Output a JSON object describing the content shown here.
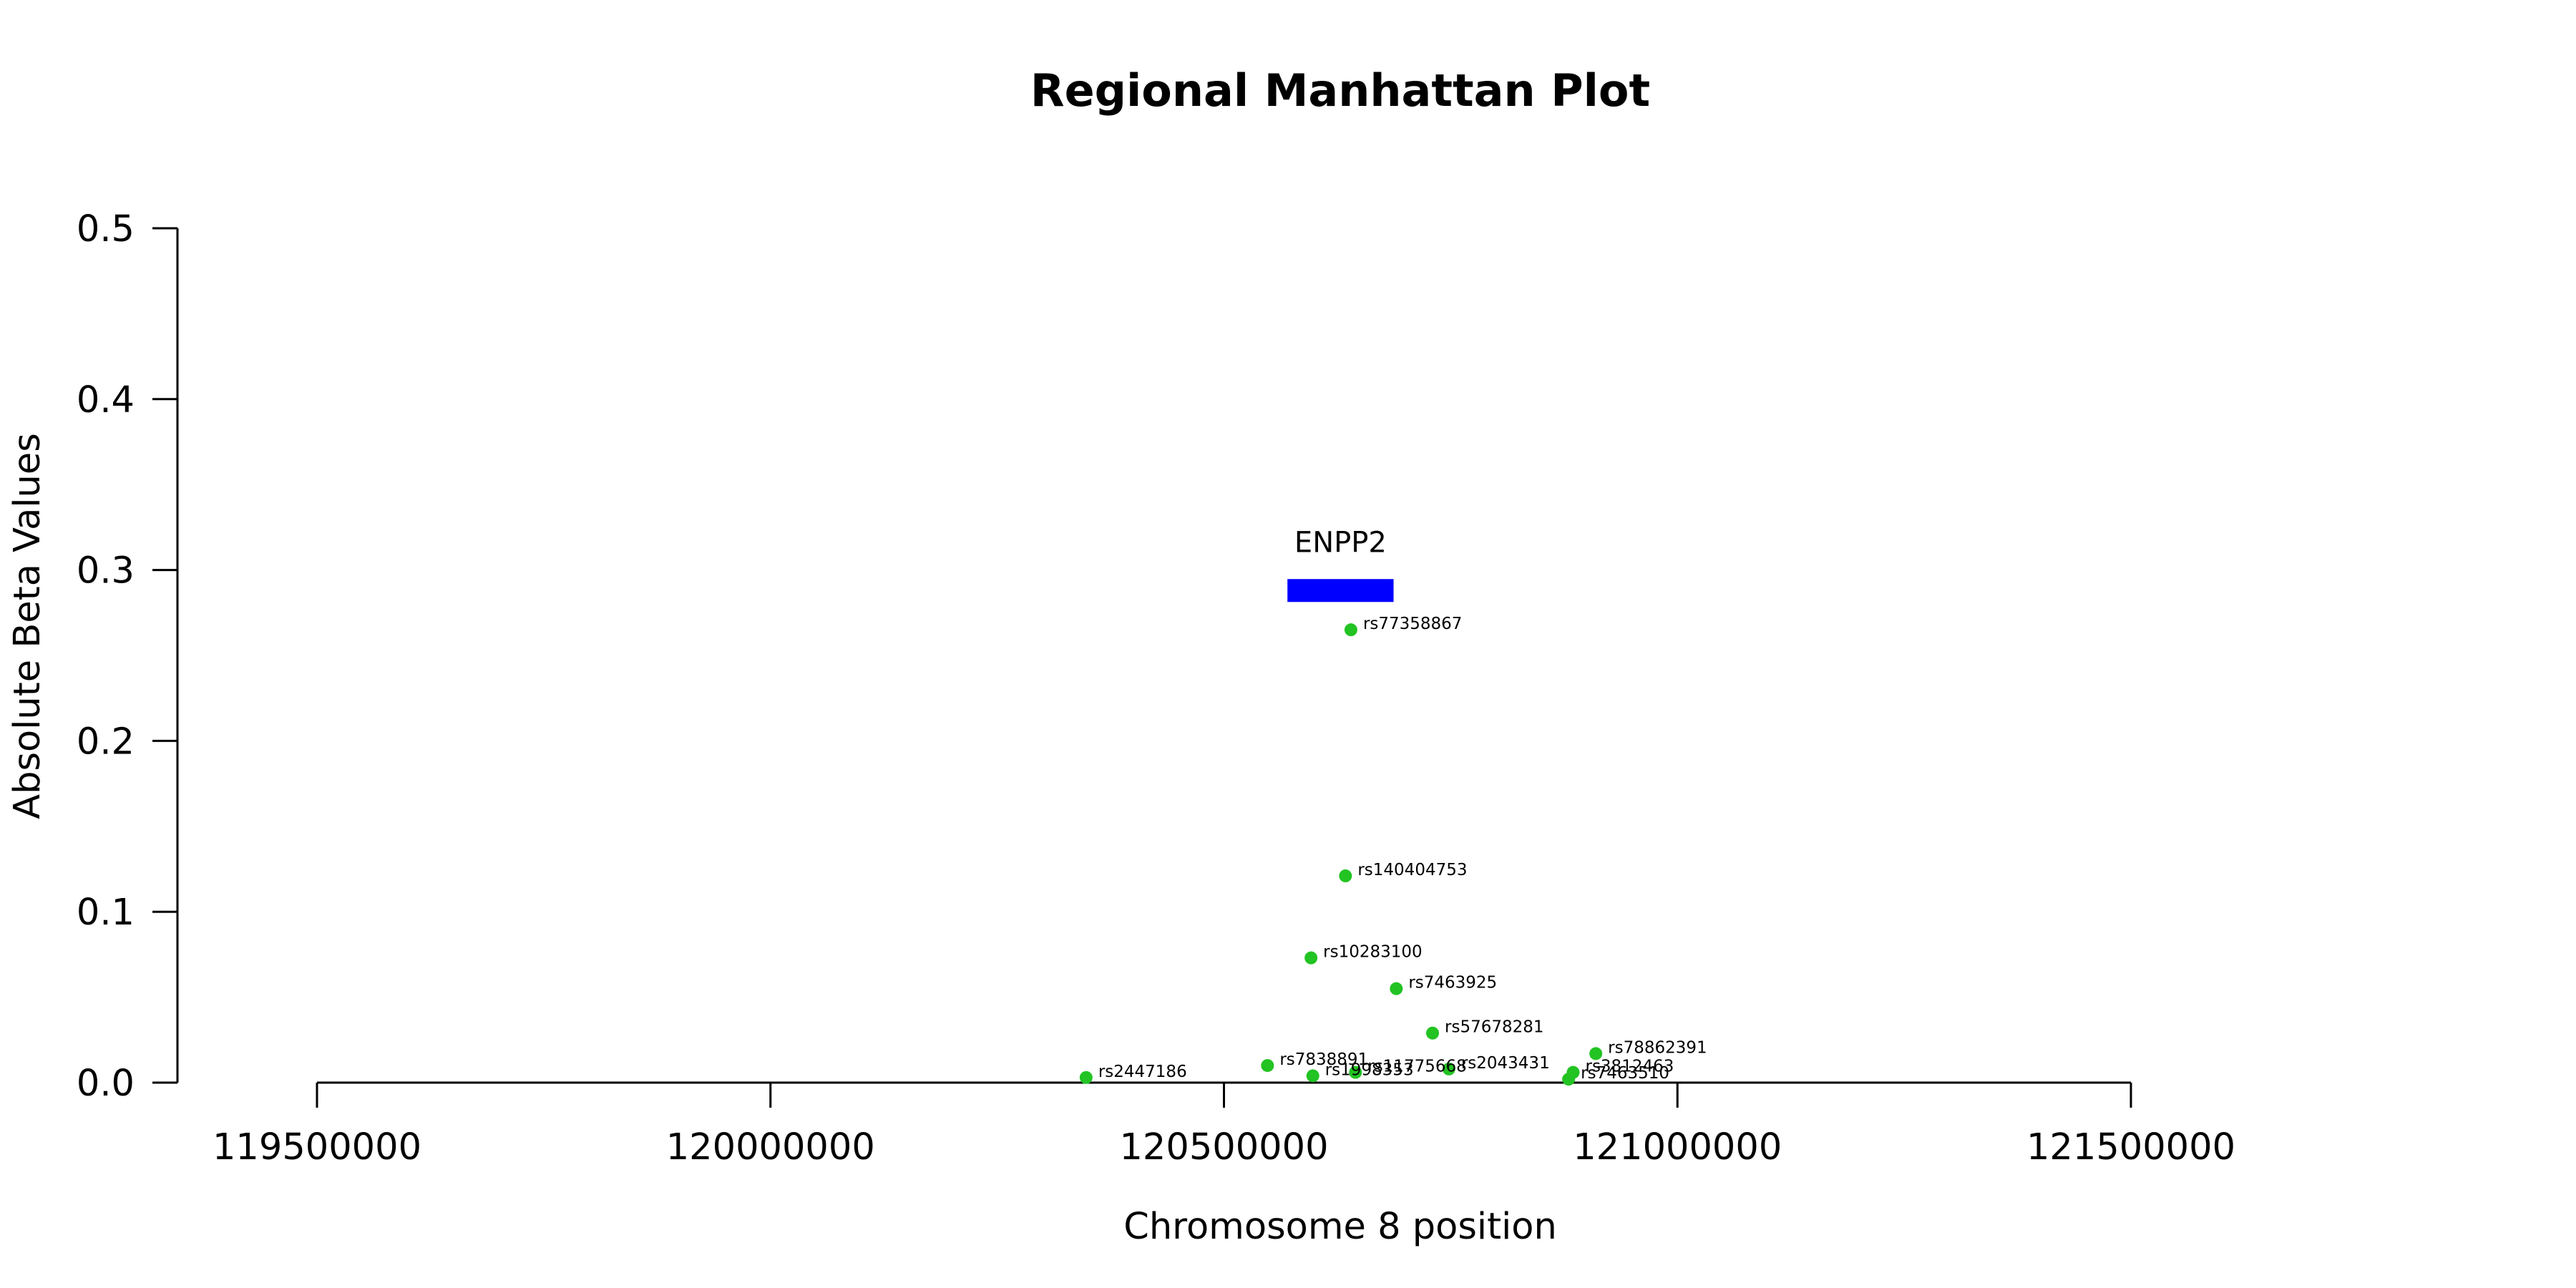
{
  "chart_data": {
    "type": "scatter",
    "title": "Regional Manhattan Plot",
    "xlabel": "Chromosome 8 position",
    "ylabel": "Absolute Beta Values",
    "xlim": [
      119500000,
      121500000
    ],
    "ylim": [
      0,
      0.5
    ],
    "x_ticks": [
      "119500000",
      "120000000",
      "120500000",
      "121000000",
      "121500000"
    ],
    "y_ticks": [
      "0.0",
      "0.1",
      "0.2",
      "0.3",
      "0.4",
      "0.5"
    ],
    "grid": false,
    "point_color": "#22c322",
    "gene": {
      "name": "ENPP2",
      "start": 120570000,
      "end": 120687000,
      "y": 0.288,
      "color": "#0000ff"
    },
    "points": [
      {
        "label": "rs77358867",
        "x": 120640000,
        "y": 0.265
      },
      {
        "label": "rs140404753",
        "x": 120634000,
        "y": 0.121
      },
      {
        "label": "rs10283100",
        "x": 120596000,
        "y": 0.073
      },
      {
        "label": "rs7463925",
        "x": 120690000,
        "y": 0.055
      },
      {
        "label": "rs57678281",
        "x": 120730000,
        "y": 0.029
      },
      {
        "label": "rs78862391",
        "x": 120910000,
        "y": 0.017
      },
      {
        "label": "rs7838891",
        "x": 120548000,
        "y": 0.01
      },
      {
        "label": "rs2043431",
        "x": 120748000,
        "y": 0.008
      },
      {
        "label": "rs11775668",
        "x": 120645000,
        "y": 0.006
      },
      {
        "label": "rs3812463",
        "x": 120885000,
        "y": 0.006
      },
      {
        "label": "rs1998353",
        "x": 120598000,
        "y": 0.004
      },
      {
        "label": "rs7463510",
        "x": 120880000,
        "y": 0.002
      },
      {
        "label": "rs2447186",
        "x": 120348000,
        "y": 0.003
      }
    ]
  }
}
